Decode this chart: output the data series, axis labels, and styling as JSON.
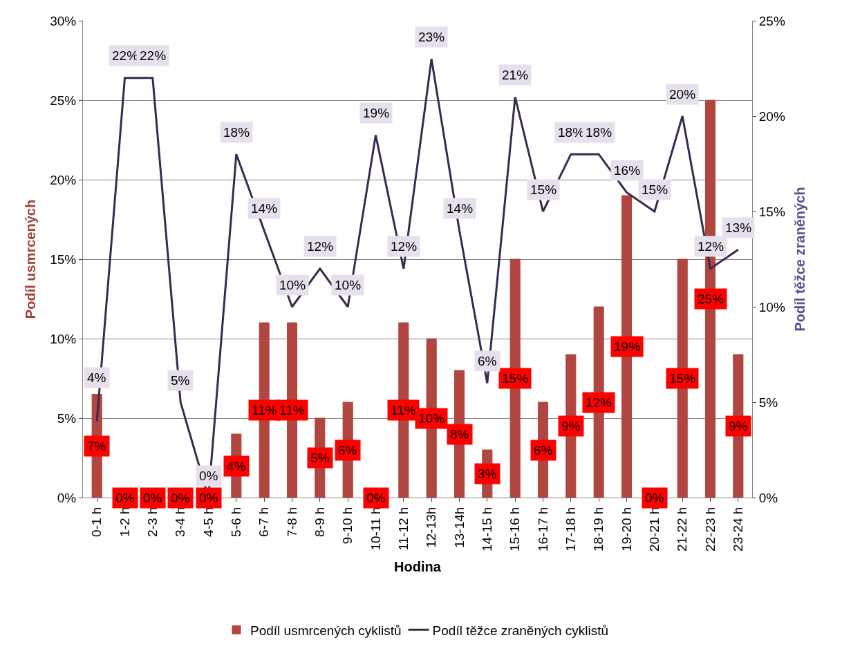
{
  "chart_data": {
    "type": "bar",
    "xlabel": "Hodina",
    "ylabel": "Podíl usmrcených",
    "y2label": "Podíl těžce zraněných",
    "categories": [
      "0-1 h",
      "1-2 h",
      "2-3 h",
      "3-4 h",
      "4-5 h",
      "5-6 h",
      "6-7 h",
      "7-8 h",
      "8-9 h",
      "9-10 h",
      "10-11 h",
      "11-12 h",
      "12-13h",
      "13-14h",
      "14-15 h",
      "15-16 h",
      "16-17 h",
      "17-18 h",
      "18-19 h",
      "19-20 h",
      "20-21 h",
      "21-22 h",
      "22-23 h",
      "23-24 h"
    ],
    "series": [
      {
        "name": "Podíl usmrcených cyklistů",
        "color": "#b0463f",
        "values": [
          6.5,
          0,
          0,
          0,
          0,
          4,
          11,
          11,
          5,
          6,
          0,
          11,
          10,
          8,
          3,
          15,
          6,
          9,
          12,
          19,
          0,
          15,
          25,
          9
        ],
        "value_labels": [
          "7%",
          "0%",
          "0%",
          "0%",
          "0%",
          "4%",
          "11%",
          "11%",
          "5%",
          "6%",
          "0%",
          "11%",
          "10%",
          "8%",
          "3%",
          "15%",
          "6%",
          "9%",
          "12%",
          "19%",
          "0%",
          "15%",
          "25%",
          "9%"
        ]
      },
      {
        "name": "Podíl těžce zraněných cyklistů",
        "type": "line",
        "axis": "y2",
        "color": "#3a2a50",
        "values": [
          4,
          22,
          22,
          5,
          0,
          18,
          14,
          10,
          12,
          10,
          19,
          12,
          23,
          14,
          6,
          21,
          15,
          18,
          18,
          16,
          15,
          20,
          12,
          13
        ],
        "value_labels": [
          "4%",
          "22%",
          "22%",
          "5%",
          "0%",
          "18%",
          "14%",
          "10%",
          "12%",
          "10%",
          "19%",
          "12%",
          "23%",
          "14%",
          "6%",
          "21%",
          "15%",
          "18%",
          "18%",
          "16%",
          "15%",
          "20%",
          "12%",
          "13%"
        ]
      }
    ],
    "ylim": [
      0,
      30
    ],
    "yticks": [
      {
        "value": 0,
        "label": "0%"
      },
      {
        "value": 5,
        "label": "5%"
      },
      {
        "value": 10,
        "label": "10%"
      },
      {
        "value": 15,
        "label": "15%"
      },
      {
        "value": 20,
        "label": "20%"
      },
      {
        "value": 25,
        "label": "25%"
      },
      {
        "value": 30,
        "label": "30%"
      }
    ],
    "y2lim": [
      0,
      25
    ],
    "y2ticks": [
      {
        "value": 0,
        "label": "0%"
      },
      {
        "value": 5,
        "label": "5%"
      },
      {
        "value": 10,
        "label": "10%"
      },
      {
        "value": 15,
        "label": "15%"
      },
      {
        "value": 20,
        "label": "20%"
      },
      {
        "value": 25,
        "label": "25%"
      }
    ],
    "grid": "y",
    "legend": "bottom",
    "marker": "none",
    "line_style": "solid"
  }
}
